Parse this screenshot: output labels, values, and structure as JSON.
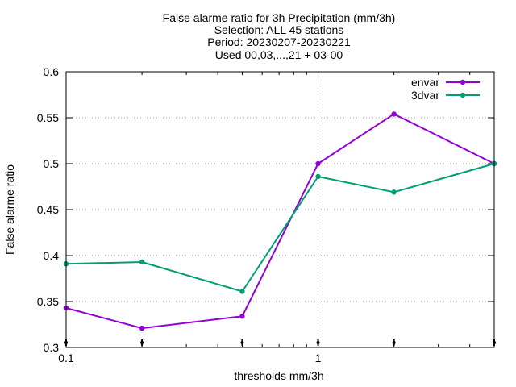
{
  "chart_data": {
    "type": "line",
    "title_lines": [
      "False alarme ratio  for 3h Precipitation (mm/3h)",
      "Selection: ALL      45 stations",
      "Period: 20230207-20230221",
      "Used 00,03,...,21 + 03-00"
    ],
    "xlabel": "thresholds mm/3h",
    "ylabel": "False alarme ratio",
    "xscale": "log",
    "xlim": [
      0.1,
      5
    ],
    "ylim": [
      0.3,
      0.6
    ],
    "x_tick_labels": [
      "0.1",
      "1"
    ],
    "y_tick_labels": [
      "0.3",
      "0.35",
      "0.4",
      "0.45",
      "0.5",
      "0.55",
      "0.6"
    ],
    "grid": true,
    "legend_position": "top-right",
    "x": [
      0.1,
      0.2,
      0.5,
      1,
      2,
      5
    ],
    "series": [
      {
        "name": "envar",
        "color": "#9400d3",
        "values": [
          0.343,
          0.321,
          0.334,
          0.5,
          0.554,
          0.5
        ]
      },
      {
        "name": "3dvar",
        "color": "#009e73",
        "values": [
          0.391,
          0.393,
          0.361,
          0.486,
          0.469,
          0.5
        ]
      }
    ]
  }
}
